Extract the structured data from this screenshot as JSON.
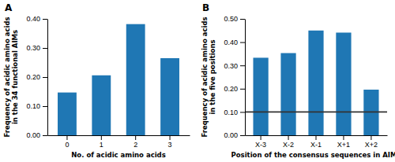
{
  "chart_data": [
    {
      "type": "bar",
      "title": "A",
      "categories": [
        0,
        1,
        2,
        3
      ],
      "values": [
        0.147,
        0.206,
        0.382,
        0.265
      ],
      "x_label": "No. of acidic amino acids",
      "y_label": "Frequency of acidic amino acids\nin the 34 functional AIMs",
      "ylim": [
        0.0,
        0.4
      ],
      "yticks": [
        {
          "value": 0.0,
          "label": "0.00"
        },
        {
          "value": 0.1,
          "label": "0.10"
        },
        {
          "value": 0.2,
          "label": "0.20"
        },
        {
          "value": 0.3,
          "label": "0.30"
        },
        {
          "value": 0.4,
          "label": "0.40"
        }
      ],
      "grid": false
    },
    {
      "type": "bar",
      "title": "B",
      "categories": [
        "X-3",
        "X-2",
        "X-1",
        "X+1",
        "X+2"
      ],
      "values": [
        0.333,
        0.353,
        0.45,
        0.441,
        0.196
      ],
      "x_label": "Position of the consensus sequences in AIMs",
      "y_label": "Frequency of acidic amino acids\nin the five positions",
      "ylim": [
        0.0,
        0.5
      ],
      "yticks": [
        {
          "value": 0.0,
          "label": "0.00"
        },
        {
          "value": 0.1,
          "label": "0.10"
        },
        {
          "value": 0.2,
          "label": "0.20"
        },
        {
          "value": 0.3,
          "label": "0.30"
        },
        {
          "value": 0.4,
          "label": "0.40"
        },
        {
          "value": 0.5,
          "label": "0.50"
        }
      ],
      "hline": 0.1,
      "grid": false
    }
  ]
}
